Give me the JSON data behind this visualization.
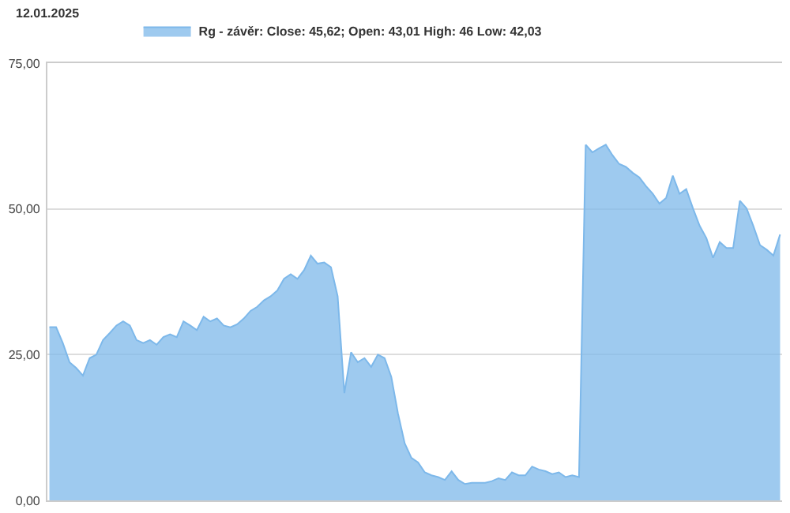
{
  "chart_data": {
    "type": "area",
    "title": "12.01.2025",
    "legend": "top left",
    "grid": "y",
    "tick_labels": "y",
    "marker": "none",
    "ylim": [
      0,
      75
    ],
    "yticks": [
      {
        "value": 0,
        "label": "0,00"
      },
      {
        "value": 25,
        "label": "25,00"
      },
      {
        "value": 50,
        "label": "50,00"
      },
      {
        "value": 75,
        "label": "75,00"
      }
    ],
    "categories": [
      null,
      null,
      null,
      null,
      null,
      null,
      null,
      null,
      null,
      null,
      null,
      null,
      null,
      null,
      null,
      null,
      null,
      null,
      null,
      null,
      null,
      null,
      null,
      null,
      null,
      null,
      null,
      null,
      null,
      null,
      null,
      null,
      null,
      null,
      null,
      null,
      null,
      null,
      null,
      null,
      null,
      null,
      null,
      null,
      null,
      null,
      null,
      null,
      null,
      null,
      null,
      null,
      null,
      null,
      null,
      null,
      null,
      null,
      null,
      null,
      null,
      null,
      null,
      null,
      null,
      null,
      null,
      null,
      null,
      null,
      null,
      null,
      null,
      null,
      null,
      null,
      null,
      null,
      null,
      null,
      null,
      null,
      null,
      null,
      null,
      null,
      null,
      null,
      null,
      null,
      null,
      null,
      null,
      null,
      null,
      null,
      null,
      null,
      null,
      null,
      null,
      null,
      null,
      null,
      null,
      null,
      null,
      null,
      null,
      null
    ],
    "series": [
      {
        "name": "Rg - závěr: Close: 45,62; Open: 43,01 High: 46 Low: 42,03",
        "color": "#7db8ea",
        "values": [
          29.7,
          29.7,
          27,
          23.7,
          22.7,
          21.4,
          24.4,
          25,
          27.5,
          28.7,
          30,
          30.7,
          30,
          27.5,
          27,
          27.5,
          26.7,
          28,
          28.5,
          28,
          30.7,
          30,
          29.2,
          31.5,
          30.7,
          31.2,
          30,
          29.7,
          30.2,
          31.2,
          32.5,
          33.2,
          34.3,
          35,
          36,
          38,
          38.8,
          38,
          39.5,
          42,
          40.6,
          40.8,
          40,
          35,
          18.4,
          25.4,
          23.7,
          24.4,
          22.9,
          25,
          24.4,
          21.2,
          14.9,
          9.8,
          7.3,
          6.5,
          4.8,
          4.3,
          4,
          3.5,
          5,
          3.5,
          2.8,
          3,
          3,
          3,
          3.3,
          3.8,
          3.5,
          4.8,
          4.3,
          4.3,
          5.8,
          5.3,
          5,
          4.5,
          4.8,
          4,
          4.3,
          4,
          61,
          59.7,
          60.4,
          61,
          59.2,
          57.7,
          57.2,
          56.2,
          55.4,
          53.9,
          52.6,
          50.9,
          51.9,
          55.7,
          52.6,
          53.4,
          50.1,
          47.1,
          45,
          41.6,
          44.3,
          43.3,
          43.3,
          51.4,
          50.1,
          47.1,
          43.8,
          43,
          42,
          45.6
        ]
      }
    ]
  }
}
